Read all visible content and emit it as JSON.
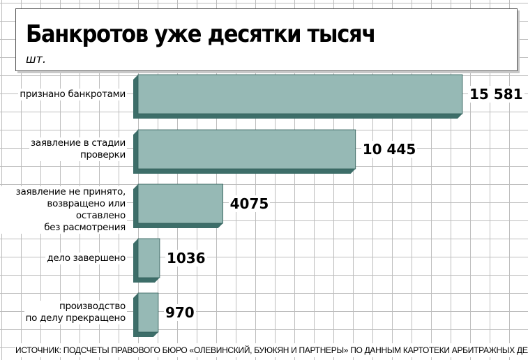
{
  "chart_data": {
    "type": "bar",
    "orientation": "horizontal",
    "title": "Банкротов уже десятки тысяч",
    "unit": "шт.",
    "categories": [
      "признано банкротами",
      "заявление в стадии\nпроверки",
      "заявление не принято,\nвозвращено или оставлено\nбез расмотрения",
      "дело завершено",
      "производство\nпо делу прекращено"
    ],
    "values": [
      15581,
      10445,
      4075,
      1036,
      970
    ],
    "value_labels": [
      "15 581",
      "10 445",
      "4075",
      "1036",
      "970"
    ],
    "source": "ИСТОЧНИК: ПОДСЧЕТЫ ПРАВОВОГО БЮРО «ОЛЕВИНСКИЙ, БУЮКЯН И ПАРТНЕРЫ» ПО ДАННЫМ КАРТОТЕКИ АРБИТРАЖНЫХ ДЕЛ",
    "colors": {
      "bar_face": "#96b9b5",
      "bar_shadow": "#3d6e69",
      "bar_edge": "#2f5c57"
    }
  }
}
